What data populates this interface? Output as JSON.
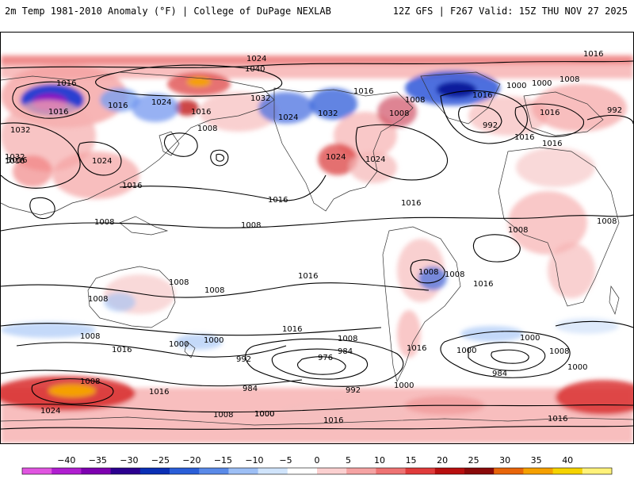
{
  "header": {
    "title_left": "2m Temp 1981-2010 Anomaly (°F) | College of DuPage NEXLAB",
    "title_right": "12Z GFS | F267 Valid: 15Z THU NOV 27 2025"
  },
  "map": {
    "isobar_labels": [
      "1024",
      "1016",
      "1040",
      "1016",
      "1016",
      "1024",
      "1016",
      "1032",
      "1016",
      "1032",
      "1008",
      "1016",
      "1008",
      "1008",
      "1016",
      "1000",
      "1008",
      "992",
      "1032",
      "1024",
      "1016",
      "1024",
      "1024",
      "1016",
      "1032",
      "1024",
      "1016",
      "1008",
      "1016",
      "1000",
      "992",
      "1016",
      "1016",
      "1008",
      "1008",
      "1008",
      "1008",
      "1008",
      "1008",
      "1016",
      "1016",
      "1016",
      "1008",
      "1008",
      "1016",
      "1000",
      "1000",
      "1008",
      "976",
      "984",
      "1000",
      "992",
      "984",
      "992",
      "1000",
      "1016",
      "1016",
      "1024",
      "1008",
      "1016",
      "1000",
      "1000",
      "1008",
      "1008",
      "984",
      "1000",
      "1000",
      "1008",
      "1016",
      "1016",
      "1016"
    ],
    "colors": {
      "land_outline": "#333333",
      "isobar": "#000000",
      "warm": "#f08080",
      "cold": "#4169e1"
    }
  },
  "colorbar": {
    "ticks": [
      "−40",
      "−35",
      "−30",
      "−25",
      "−20",
      "−15",
      "−10",
      "−5",
      "0",
      "5",
      "10",
      "15",
      "20",
      "25",
      "30",
      "35",
      "40"
    ],
    "colors": [
      "#e055e0",
      "#b01ed0",
      "#7d00b0",
      "#2b008f",
      "#0a2fb5",
      "#2a5ed8",
      "#5a8ae8",
      "#9dbff5",
      "#d0e4fb",
      "#ffffff",
      "#fbd0d0",
      "#f5a3a3",
      "#ee7373",
      "#e03b3b",
      "#b80f0f",
      "#8a0a0a",
      "#e8650a",
      "#f5a000",
      "#f5d300",
      "#fff27a"
    ]
  }
}
